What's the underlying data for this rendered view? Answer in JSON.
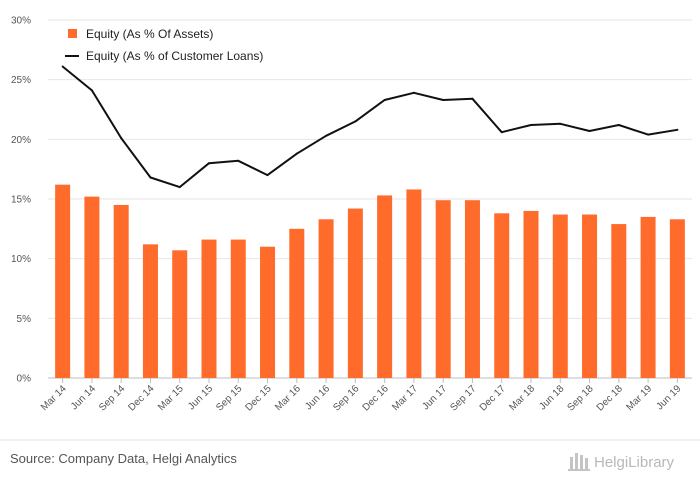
{
  "chart_data": {
    "type": "bar",
    "categories": [
      "Mar 14",
      "Jun 14",
      "Sep 14",
      "Dec 14",
      "Mar 15",
      "Jun 15",
      "Sep 15",
      "Dec 15",
      "Mar 16",
      "Jun 16",
      "Sep 16",
      "Dec 16",
      "Mar 17",
      "Jun 17",
      "Sep 17",
      "Dec 17",
      "Mar 18",
      "Jun 18",
      "Sep 18",
      "Dec 18",
      "Mar 19",
      "Jun 19"
    ],
    "series": [
      {
        "name": "Equity (As % Of Assets)",
        "type": "bar",
        "color": "#ff6b2b",
        "values": [
          16.2,
          15.2,
          14.5,
          11.2,
          10.7,
          11.6,
          11.6,
          11.0,
          12.5,
          13.3,
          14.2,
          15.3,
          15.8,
          14.9,
          14.9,
          13.8,
          14.0,
          13.7,
          13.7,
          12.9,
          13.5,
          13.3
        ]
      },
      {
        "name": "Equity (As % of Customer Loans)",
        "type": "line",
        "color": "#111111",
        "values": [
          26.1,
          24.1,
          20.1,
          16.8,
          16.0,
          18.0,
          18.2,
          17.0,
          18.8,
          20.3,
          21.5,
          23.3,
          23.9,
          23.3,
          23.4,
          20.6,
          21.2,
          21.3,
          20.7,
          21.2,
          20.4,
          20.8
        ]
      }
    ],
    "yticks": [
      "0%",
      "5%",
      "10%",
      "15%",
      "20%",
      "25%",
      "30%"
    ],
    "ylim": [
      0,
      30
    ],
    "grid": true,
    "legend": "top-left"
  },
  "footer": {
    "source": "Source: Company Data, Helgi Analytics",
    "brand": "HelgiLibrary"
  }
}
